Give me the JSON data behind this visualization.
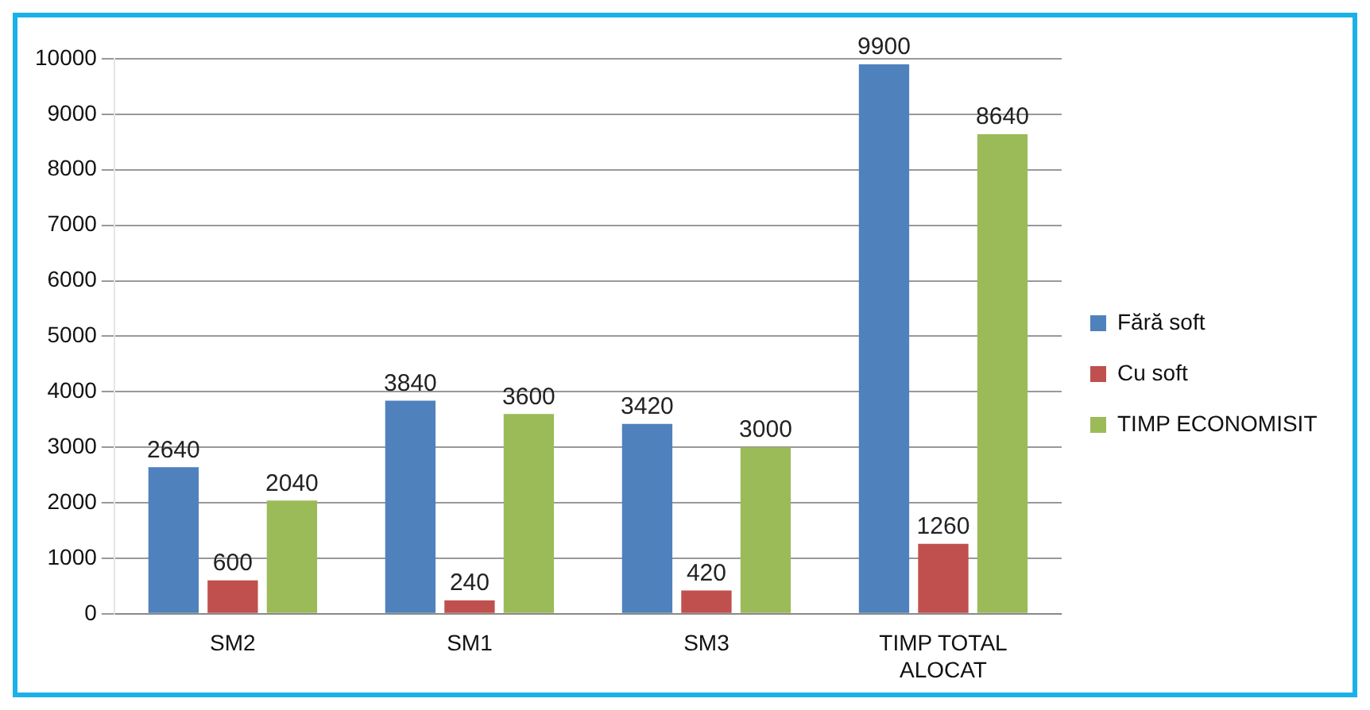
{
  "chart_data": {
    "type": "bar",
    "categories": [
      "SM2",
      "SM1",
      "SM3",
      "TIMP TOTAL ALOCAT"
    ],
    "series": [
      {
        "name": "Fără soft",
        "color": "#4f81bd",
        "values": [
          2640,
          3840,
          3420,
          9900
        ]
      },
      {
        "name": "Cu soft",
        "color": "#c0504d",
        "values": [
          600,
          240,
          420,
          1260
        ]
      },
      {
        "name": "TIMP ECONOMISIT",
        "color": "#9bbb59",
        "values": [
          2040,
          3600,
          3000,
          8640
        ]
      }
    ],
    "ylim": [
      0,
      10000
    ],
    "yticks": [
      0,
      1000,
      2000,
      3000,
      4000,
      5000,
      6000,
      7000,
      8000,
      9000,
      10000
    ],
    "grid": "y",
    "legend": "right",
    "data_labels": true
  }
}
